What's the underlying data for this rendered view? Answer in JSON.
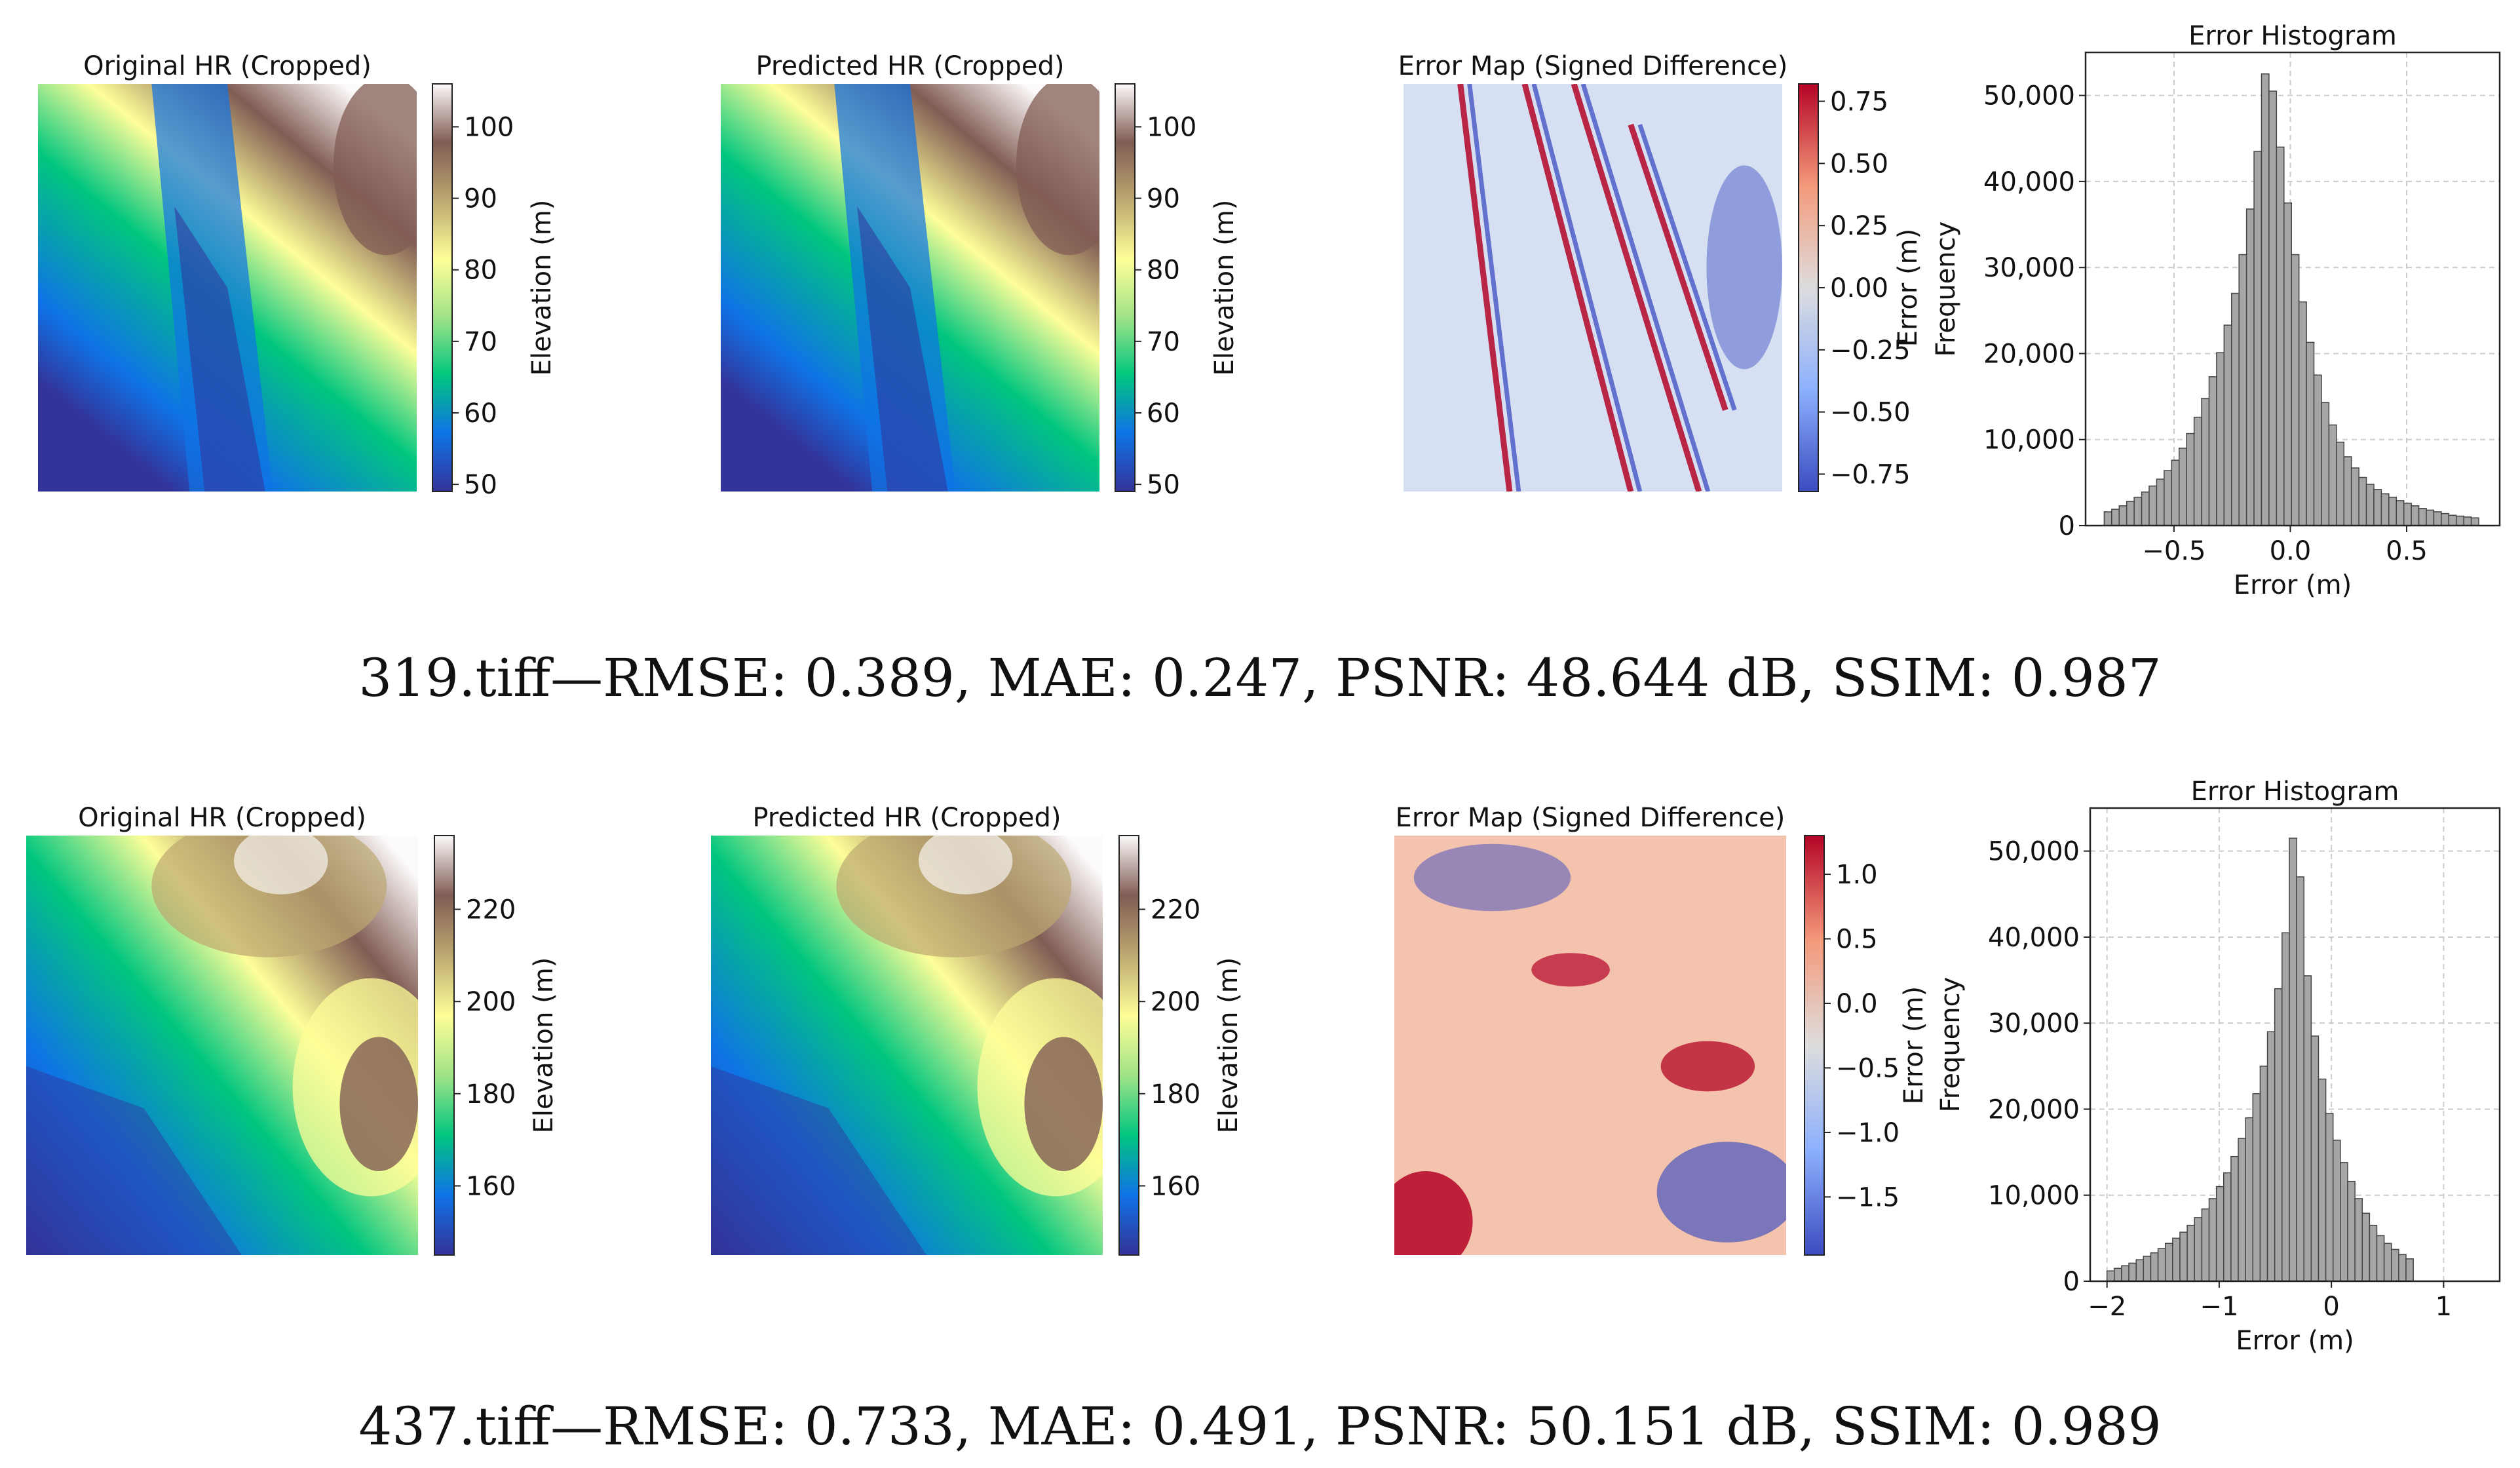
{
  "colors": {
    "terrain": [
      "#333399",
      "#0f73e6",
      "#01c67e",
      "#a1e387",
      "#fefe98",
      "#bca870",
      "#815c54",
      "#fcfafa"
    ],
    "coolwarm": [
      "#3b4cc0",
      "#8db0fe",
      "#dddddd",
      "#f49a7b",
      "#b40426"
    ],
    "hist_fill": "#a6a6a6",
    "hist_edge": "#444444"
  },
  "rows": [
    {
      "caption": "319.tiff—RMSE: 0.389, MAE: 0.247, PSNR: 48.644 dB, SSIM: 0.987",
      "original": {
        "title": "Original HR (Cropped)",
        "colorbar": {
          "label": "Elevation (m)",
          "range": [
            49,
            106
          ],
          "ticks": [
            "50",
            "60",
            "70",
            "80",
            "90",
            "100"
          ]
        }
      },
      "predicted": {
        "title": "Predicted HR (Cropped)",
        "colorbar": {
          "label": "Elevation (m)",
          "range": [
            49,
            106
          ],
          "ticks": [
            "50",
            "60",
            "70",
            "80",
            "90",
            "100"
          ]
        }
      },
      "error_map": {
        "title": "Error Map (Signed Difference)",
        "colorbar": {
          "label": "Error (m)",
          "range": [
            -0.82,
            0.82
          ],
          "ticks": [
            "−0.75",
            "−0.50",
            "−0.25",
            "0.00",
            "0.25",
            "0.50",
            "0.75"
          ]
        }
      }
    },
    {
      "caption": "437.tiff—RMSE: 0.733, MAE: 0.491, PSNR: 50.151 dB, SSIM: 0.989",
      "original": {
        "title": "Original HR (Cropped)",
        "colorbar": {
          "label": "Elevation (m)",
          "range": [
            145,
            236
          ],
          "ticks": [
            "160",
            "180",
            "200",
            "220"
          ]
        }
      },
      "predicted": {
        "title": "Predicted HR (Cropped)",
        "colorbar": {
          "label": "Elevation (m)",
          "range": [
            145,
            236
          ],
          "ticks": [
            "160",
            "180",
            "200",
            "220"
          ]
        }
      },
      "error_map": {
        "title": "Error Map (Signed Difference)",
        "colorbar": {
          "label": "Error (m)",
          "range": [
            -1.95,
            1.3
          ],
          "ticks": [
            "−1.5",
            "−1.0",
            "−0.5",
            "0.0",
            "0.5",
            "1.0"
          ]
        }
      }
    }
  ],
  "chart_data": [
    {
      "type": "bar",
      "title": "Error Histogram",
      "xlabel": "Error (m)",
      "ylabel": "Frequency",
      "xlim": [
        -0.88,
        0.9
      ],
      "ylim": [
        0,
        55000
      ],
      "xticks": [
        {
          "value": -0.5,
          "label": "−0.5"
        },
        {
          "value": 0.0,
          "label": "0.0"
        },
        {
          "value": 0.5,
          "label": "0.5"
        }
      ],
      "yticks": [
        {
          "value": 0,
          "label": "0"
        },
        {
          "value": 10000,
          "label": "10,000"
        },
        {
          "value": 20000,
          "label": "20,000"
        },
        {
          "value": 30000,
          "label": "30,000"
        },
        {
          "value": 40000,
          "label": "40,000"
        },
        {
          "value": 50000,
          "label": "50,000"
        }
      ],
      "grid": true,
      "bin_start": -0.8,
      "bin_width": 0.0322,
      "values": [
        1600,
        1900,
        2300,
        2800,
        3300,
        3900,
        4600,
        5400,
        6400,
        7600,
        9000,
        10700,
        12600,
        14800,
        17300,
        20100,
        23300,
        27000,
        31500,
        36800,
        43500,
        52500,
        50500,
        44000,
        37500,
        31500,
        26000,
        21300,
        17500,
        14300,
        11700,
        9700,
        8000,
        6700,
        5600,
        4800,
        4200,
        3700,
        3300,
        2900,
        2600,
        2300,
        2000,
        1800,
        1600,
        1400,
        1200,
        1100,
        1000,
        900
      ]
    },
    {
      "type": "bar",
      "title": "Error Histogram",
      "xlabel": "Error (m)",
      "ylabel": "Frequency",
      "xlim": [
        -2.15,
        1.5
      ],
      "ylim": [
        0,
        55000
      ],
      "xticks": [
        {
          "value": -2,
          "label": "−2"
        },
        {
          "value": -1,
          "label": "−1"
        },
        {
          "value": 0,
          "label": "0"
        },
        {
          "value": 1,
          "label": "1"
        }
      ],
      "yticks": [
        {
          "value": 0,
          "label": "0"
        },
        {
          "value": 10000,
          "label": "10,000"
        },
        {
          "value": 20000,
          "label": "20,000"
        },
        {
          "value": 30000,
          "label": "30,000"
        },
        {
          "value": 40000,
          "label": "40,000"
        },
        {
          "value": 50000,
          "label": "50,000"
        }
      ],
      "grid": true,
      "bin_start": -2.0,
      "bin_width": 0.065,
      "values": [
        1200,
        1500,
        1800,
        2100,
        2500,
        2900,
        3300,
        3800,
        4400,
        5000,
        5700,
        6500,
        7400,
        8400,
        9600,
        11000,
        12600,
        14500,
        16600,
        19000,
        21800,
        25000,
        29000,
        34000,
        40500,
        51500,
        47000,
        35500,
        28500,
        23500,
        19500,
        16400,
        13800,
        11600,
        9600,
        7900,
        6500,
        5300,
        4400,
        3700,
        3100,
        2600
      ]
    }
  ]
}
